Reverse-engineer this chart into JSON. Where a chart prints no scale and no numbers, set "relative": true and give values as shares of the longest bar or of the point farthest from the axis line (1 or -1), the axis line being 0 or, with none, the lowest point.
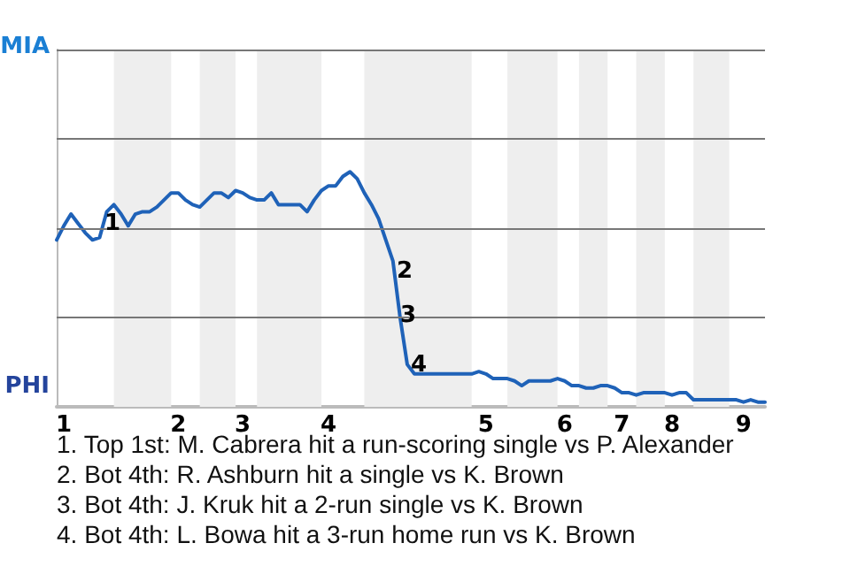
{
  "chart_data": {
    "type": "line",
    "relative": true,
    "categories": [
      null,
      "1",
      null,
      null,
      null,
      null,
      null,
      null,
      null,
      null,
      null,
      null,
      null,
      null,
      null,
      null,
      null,
      "2",
      null,
      null,
      null,
      null,
      null,
      null,
      null,
      null,
      "3",
      null,
      null,
      null,
      null,
      null,
      null,
      null,
      null,
      null,
      null,
      null,
      "4",
      null,
      null,
      null,
      null,
      null,
      null,
      null,
      null,
      null,
      null,
      null,
      null,
      null,
      null,
      null,
      null,
      null,
      null,
      null,
      null,
      null,
      "5",
      null,
      null,
      null,
      null,
      null,
      null,
      null,
      null,
      null,
      null,
      "6",
      null,
      null,
      null,
      null,
      null,
      null,
      null,
      "7",
      null,
      null,
      null,
      null,
      null,
      null,
      "8",
      null,
      null,
      null,
      null,
      null,
      null,
      null,
      null,
      null,
      "9",
      null,
      null,
      null
    ],
    "series": [
      {
        "color": "#1f62b8",
        "values": [
          0.71,
          0.77,
          0.82,
          0.78,
          0.74,
          0.71,
          0.72,
          0.83,
          0.86,
          0.82,
          0.77,
          0.82,
          0.83,
          0.83,
          0.85,
          0.88,
          0.91,
          0.91,
          0.88,
          0.86,
          0.85,
          0.88,
          0.91,
          0.91,
          0.89,
          0.92,
          0.91,
          0.89,
          0.88,
          0.88,
          0.91,
          0.86,
          0.86,
          0.86,
          0.86,
          0.83,
          0.88,
          0.92,
          0.94,
          0.94,
          0.98,
          1,
          0.97,
          0.91,
          0.86,
          0.8,
          0.71,
          0.62,
          0.38,
          0.18,
          0.14,
          0.14,
          0.14,
          0.14,
          0.14,
          0.14,
          0.14,
          0.14,
          0.14,
          0.15,
          0.14,
          0.12,
          0.12,
          0.12,
          0.11,
          0.09,
          0.11,
          0.11,
          0.11,
          0.11,
          0.12,
          0.11,
          0.09,
          0.09,
          0.08,
          0.08,
          0.09,
          0.09,
          0.08,
          0.06,
          0.06,
          0.05,
          0.06,
          0.06,
          0.06,
          0.06,
          0.05,
          0.06,
          0.06,
          0.03,
          0.03,
          0.03,
          0.03,
          0.03,
          0.03,
          0.03,
          0.02,
          0.03,
          0.02,
          0.02
        ]
      }
    ],
    "marker": "none",
    "line_style": "solid",
    "ref_lines": [
      {
        "axis": "y",
        "value": 0.38,
        "color": "#777777"
      },
      {
        "axis": "y",
        "value": 0.76,
        "color": "#777777"
      },
      {
        "axis": "y",
        "value": 1.14,
        "color": "#777777"
      },
      {
        "axis": "y",
        "value": 1.52,
        "color": "#777777"
      }
    ],
    "annotations": [
      "MIA",
      "PHI",
      "1",
      "2",
      "3",
      "4",
      "1. Top 1st: M. Cabrera hit a run-scoring single vs P. Alexander",
      "2. Bot 4th: R. Ashburn hit a single vs K. Brown",
      "3. Bot 4th: J. Kruk hit a 2-run single vs K. Brown",
      "4. Bot 4th: L. Bowa hit a 3-run home run vs K. Brown"
    ]
  }
}
